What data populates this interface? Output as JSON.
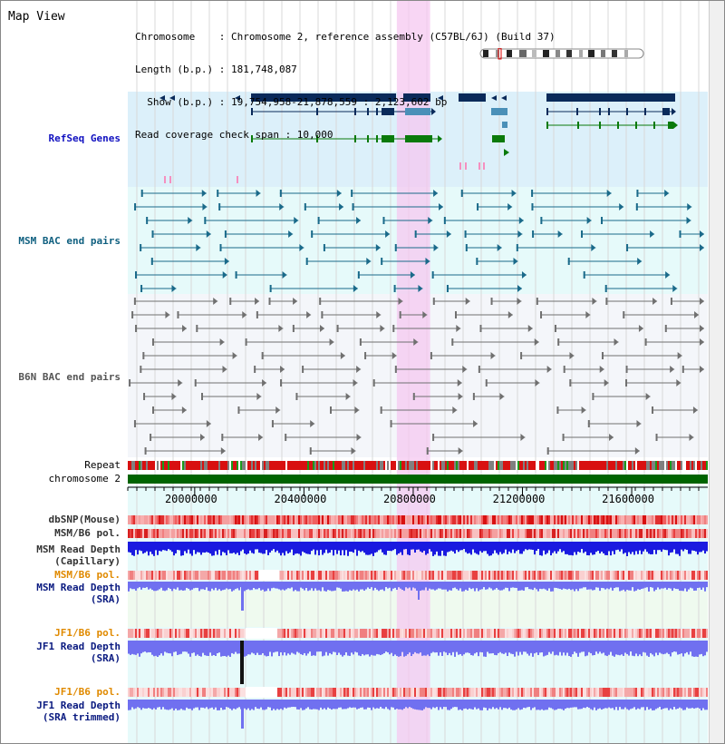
{
  "view_title": "Map View",
  "chromosome_info": {
    "line1": "Chromosome    : Chromosome 2, reference assembly (C57BL/6J) (Build 37)",
    "line2": "Length (b.p.) : 181,748,087",
    "line3": "  Show (b.p.) : 19,754,958-21,878,559 : 2,123,602 bp",
    "line4": "Read coverage check span : 10,000"
  },
  "tracks": {
    "refseq": "RefSeq Genes",
    "msm_bac": "MSM BAC end pairs",
    "b6n_bac": "B6N BAC end pairs",
    "repeat": "Repeat",
    "chromosome": "chromosome 2",
    "dbsnp": "dbSNP(Mouse)",
    "msm_b6_pol": "MSM/B6 pol.",
    "msm_read_depth_cap_1": "MSM Read Depth",
    "msm_read_depth_cap_2": "(Capillary)",
    "msm_b6_pol_2": "MSM/B6 pol.",
    "msm_read_depth_sra_1": "MSM Read Depth",
    "msm_read_depth_sra_2": "(SRA)",
    "jf1_b6_pol": "JF1/B6 pol.",
    "jf1_read_depth_sra_1": "JF1 Read Depth",
    "jf1_read_depth_sra_2": "(SRA)",
    "jf1_b6_pol_2": "JF1/B6 pol.",
    "jf1_read_depth_trim_1": "JF1 Read Depth",
    "jf1_read_depth_trim_2": "(SRA trimmed)"
  },
  "axis": {
    "ticks": [
      "20000000",
      "20400000",
      "20800000",
      "21200000",
      "21600000"
    ],
    "tick_values": [
      20000000,
      20400000,
      20800000,
      21200000,
      21600000
    ],
    "start": 19754958,
    "end": 21878559
  },
  "highlight": {
    "start": 20740000,
    "end": 20862000
  },
  "colors": {
    "refseq_bg": "#dcf0fa",
    "msm_bg": "#e6fafa",
    "b6n_bg": "#f4f6fa",
    "highlight": "#f5c8f0",
    "gene_navy": "#0a2a5a",
    "gene_blue": "#4a90b8",
    "gene_green": "#0a7a0a",
    "msm_pair": "#1a6a8a",
    "b6n_pair": "#707070",
    "chrom_bar": "#006400",
    "depth_blue": "#1a1ae0",
    "depth_light": "#7070f0"
  }
}
